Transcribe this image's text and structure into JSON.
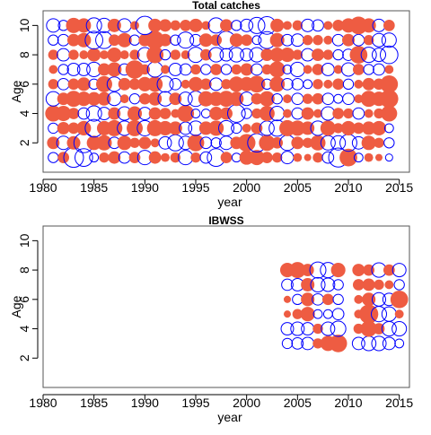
{
  "colors": {
    "positive": "#EE5C42",
    "negative": "#0000FF",
    "axis": "#000000",
    "frame": "#555555"
  },
  "chart_data": [
    {
      "type": "scatter",
      "title": "Total catches",
      "xlabel": "year",
      "ylabel": "Age",
      "xlim": [
        1980,
        2016
      ],
      "ylim": [
        0,
        11
      ],
      "xticks": [
        1980,
        1985,
        1990,
        1995,
        2000,
        2005,
        2010,
        2015
      ],
      "yticks": [
        2,
        4,
        6,
        8,
        10
      ],
      "years": [
        1981,
        1982,
        1983,
        1984,
        1985,
        1986,
        1987,
        1988,
        1989,
        1990,
        1991,
        1992,
        1993,
        1994,
        1995,
        1996,
        1997,
        1998,
        1999,
        2000,
        2001,
        2002,
        2003,
        2004,
        2005,
        2006,
        2007,
        2008,
        2009,
        2010,
        2011,
        2012,
        2013,
        2014
      ],
      "ages": [
        1,
        2,
        3,
        4,
        5,
        6,
        7,
        8,
        9,
        10
      ],
      "residuals": [
        [
          -0.4,
          0.5,
          -1.5,
          -1.2,
          -0.3,
          0.4,
          0.6,
          -0.5,
          0.5,
          -0.8,
          0.6,
          0.3,
          0.4,
          -0.8,
          0.4,
          -0.5,
          -1.2,
          0.5,
          -0.3,
          0.8,
          0.9,
          0.5,
          0.4,
          -0.6,
          0.3,
          0.2,
          0.4,
          -0.5,
          -1.4,
          1.2,
          -0.3,
          0.3,
          0.2,
          -0.2
        ],
        [
          0.6,
          -0.7,
          0.7,
          -1.5,
          0.8,
          0.9,
          -0.5,
          0.8,
          0.4,
          0.6,
          0.3,
          -0.6,
          -1.0,
          -0.7,
          1.1,
          -0.5,
          -0.4,
          -0.7,
          0.6,
          1.2,
          -1.3,
          1.0,
          0.5,
          -0.9,
          0.6,
          0.4,
          0.9,
          -0.8,
          -0.8,
          -1.1,
          -0.6,
          0.8,
          0.4,
          -0.4
        ],
        [
          -0.4,
          0.6,
          0.5,
          0.8,
          -1.2,
          0.8,
          1.0,
          -0.8,
          1.0,
          -0.9,
          1.0,
          0.8,
          0.7,
          -0.6,
          -0.8,
          0.7,
          0.9,
          -0.9,
          -0.4,
          0.3,
          0.5,
          -0.8,
          -1.0,
          1.0,
          0.9,
          0.7,
          -0.8,
          0.9,
          0.4,
          0.8,
          0.5,
          0.7,
          0.8,
          -0.3
        ],
        [
          1.0,
          0.9,
          0.5,
          -0.5,
          -0.9,
          -0.6,
          0.6,
          -0.7,
          0.8,
          -0.6,
          0.6,
          0.5,
          0.3,
          1.1,
          -0.3,
          -0.3,
          0.7,
          0.6,
          -1.2,
          -0.4,
          0.4,
          0.9,
          -0.8,
          0.3,
          -0.5,
          0.6,
          0.3,
          -0.7,
          0.5,
          0.4,
          -0.5,
          0.3,
          0.4,
          1.0
        ],
        [
          -0.8,
          0.6,
          1.0,
          0.8,
          0.7,
          0.7,
          -0.7,
          0.3,
          -0.4,
          0.5,
          0.7,
          -0.8,
          0.6,
          -0.7,
          -0.9,
          0.9,
          0.8,
          1.0,
          0.8,
          -0.7,
          0.5,
          0.9,
          -0.4,
          0.3,
          -0.5,
          0.4,
          0.5,
          -0.5,
          -0.3,
          -0.5,
          0.3,
          1.0,
          0.8,
          1.3
        ],
        [
          0.4,
          -0.5,
          0.5,
          0.7,
          -0.4,
          1.0,
          -0.8,
          0.6,
          0.5,
          0.8,
          0.9,
          -1.0,
          -0.5,
          0.3,
          0.8,
          0.5,
          -0.6,
          0.4,
          0.9,
          0.8,
          1.1,
          -0.4,
          0.9,
          -0.5,
          -0.5,
          -0.3,
          0.4,
          0.3,
          0.5,
          -0.4,
          0.3,
          0.6,
          0.5,
          1.2
        ],
        [
          0.3,
          -0.4,
          -0.6,
          -0.6,
          -0.8,
          0.6,
          0.8,
          -0.5,
          1.3,
          0.4,
          -0.9,
          0.3,
          -0.6,
          -0.5,
          0.4,
          -0.4,
          0.5,
          -0.4,
          0.4,
          0.6,
          -0.5,
          0.4,
          1.0,
          -0.3,
          -0.8,
          0.3,
          0.5,
          -0.6,
          0.3,
          -0.7,
          0.5,
          -0.4,
          -0.5,
          0.3
        ],
        [
          0.4,
          -0.6,
          0.4,
          0.3,
          0.7,
          0.3,
          0.8,
          0.3,
          0.4,
          -0.8,
          1.1,
          -0.4,
          0.4,
          0.3,
          -0.9,
          0.5,
          -0.8,
          -0.6,
          -0.8,
          -0.6,
          -0.8,
          0.6,
          0.8,
          0.8,
          0.4,
          -0.6,
          0.6,
          0.4,
          -0.4,
          -0.5,
          1.2,
          -0.9,
          -0.7,
          -1.2
        ],
        [
          -0.4,
          -0.5,
          0.6,
          0.8,
          -1.2,
          -1.1,
          0.5,
          0.8,
          -0.4,
          0.6,
          1.3,
          0.6,
          -0.4,
          -1.0,
          -0.5,
          0.7,
          0.5,
          -1.2,
          0.7,
          0.5,
          -0.3,
          -1.1,
          0.8,
          -0.5,
          -0.6,
          0.4,
          0.4,
          0.3,
          -0.5,
          0.6,
          -0.5,
          0.4,
          -0.7,
          -0.8
        ],
        [
          -0.7,
          -0.4,
          0.9,
          0.8,
          -0.9,
          -0.8,
          0.7,
          -0.7,
          0.3,
          -1.3,
          0.7,
          0.6,
          0.4,
          0.5,
          0.7,
          0.3,
          -0.9,
          0.6,
          -0.4,
          -0.6,
          -1.0,
          -1.2,
          0.7,
          0.3,
          0.4,
          -0.6,
          -0.5,
          0.3,
          0.5,
          0.8,
          1.2,
          0.8,
          -0.6,
          0.5
        ]
      ]
    },
    {
      "type": "scatter",
      "title": "IBWSS",
      "xlabel": "year",
      "ylabel": "Age",
      "xlim": [
        1980,
        2016
      ],
      "ylim": [
        0,
        11
      ],
      "xticks": [
        1980,
        1985,
        1990,
        1995,
        2000,
        2005,
        2010,
        2015
      ],
      "yticks": [
        2,
        4,
        6,
        8,
        10
      ],
      "years": [
        2004,
        2005,
        2006,
        2007,
        2008,
        2009,
        2011,
        2012,
        2013,
        2014,
        2015
      ],
      "ages": [
        3,
        4,
        5,
        6,
        7,
        8
      ],
      "residuals": [
        [
          -0.4,
          -0.5,
          -0.6,
          0.4,
          0.9,
          1.2,
          -0.6,
          -0.8,
          -0.8,
          -0.6,
          -0.3
        ],
        [
          -0.6,
          -0.7,
          -0.6,
          0.4,
          -0.7,
          -0.9,
          0.4,
          1.0,
          0.5,
          -0.8,
          -0.8
        ],
        [
          0.2,
          0.4,
          0.8,
          -0.3,
          -0.3,
          -0.5,
          0.3,
          1.4,
          -0.9,
          -0.8,
          0.3
        ],
        [
          0.2,
          -0.4,
          0.7,
          -0.5,
          0.5,
          -0.4,
          0.3,
          0.7,
          -0.7,
          -0.6,
          1.2
        ],
        [
          -0.5,
          -0.6,
          0.7,
          -0.8,
          -0.7,
          -0.4,
          0.5,
          0.6,
          0.4,
          0.3,
          -0.4
        ],
        [
          0.8,
          1.0,
          0.6,
          -1.0,
          -0.9,
          0.8,
          0.6,
          0.5,
          -0.8,
          0.5,
          -0.7
        ]
      ]
    }
  ]
}
